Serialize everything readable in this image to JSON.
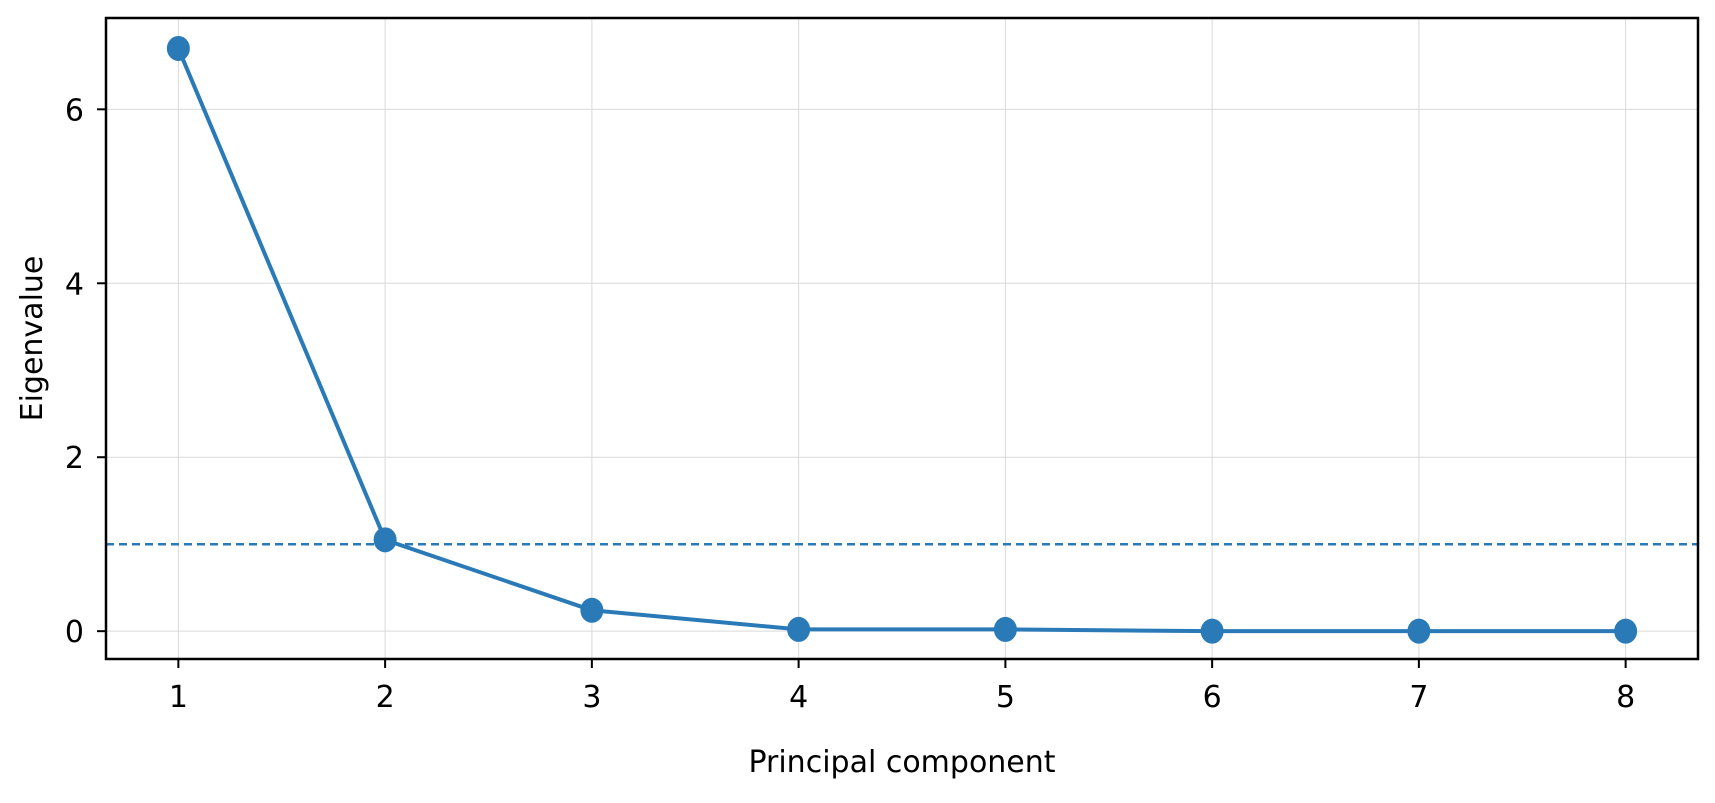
{
  "chart_data": {
    "type": "line",
    "title": "",
    "xlabel": "Principal component",
    "ylabel": "Eigenvalue",
    "x": [
      1,
      2,
      3,
      4,
      5,
      6,
      7,
      8
    ],
    "x_tick_labels": [
      "1",
      "2",
      "3",
      "4",
      "5",
      "6",
      "7",
      "8"
    ],
    "y_ticks": [
      0,
      2,
      4,
      6
    ],
    "y_tick_labels": [
      "0",
      "2",
      "4",
      "6"
    ],
    "xlim": [
      0.65,
      8.35
    ],
    "ylim": [
      -0.32,
      7.05
    ],
    "series": [
      {
        "values": [
          6.7,
          1.05,
          0.24,
          0.02,
          0.02,
          0.0,
          0.0,
          0.0
        ],
        "color": "#2a7ab8",
        "marker": "circle"
      }
    ],
    "reference_line": {
      "y": 1.0,
      "style": "dashed",
      "color": "#2a7ab8"
    },
    "grid": true,
    "legend": "none"
  }
}
